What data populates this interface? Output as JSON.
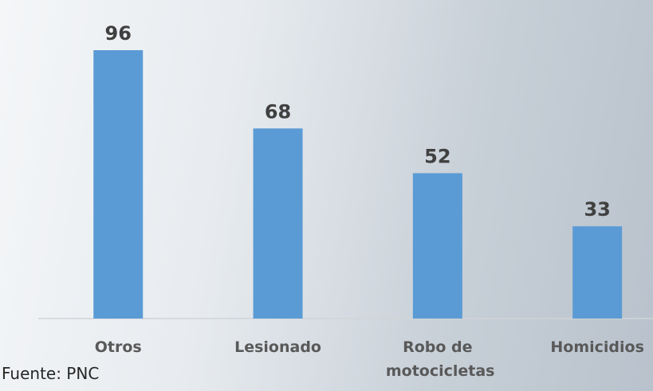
{
  "chart_data": {
    "type": "bar",
    "categories": [
      "Otros",
      "Lesionado",
      "Robo de motocicletas",
      "Homicidios"
    ],
    "values": [
      96,
      68,
      52,
      33
    ],
    "color": "#5b9bd5",
    "source": "Fuente: PNC"
  }
}
